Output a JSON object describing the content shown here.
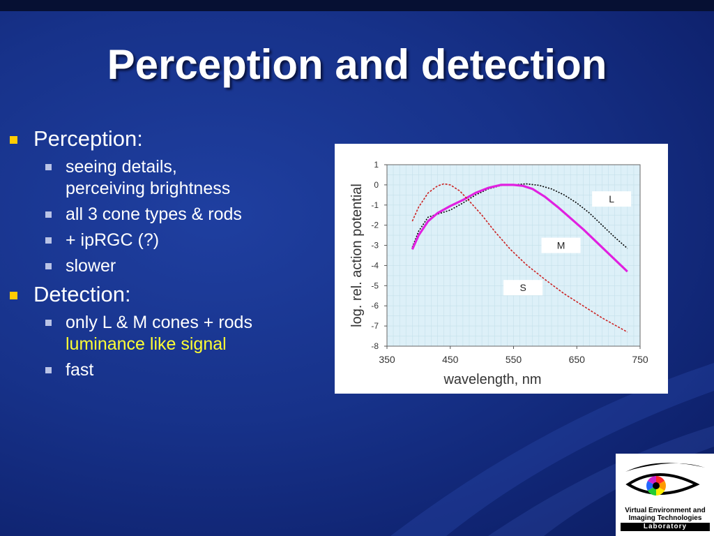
{
  "slide": {
    "title": "Perception and detection"
  },
  "bullets": {
    "perception": {
      "heading": "Perception:",
      "items": [
        "seeing details, perceiving brightness",
        "all 3 cone types & rods",
        "+ ipRGC (?)",
        "slower"
      ]
    },
    "detection": {
      "heading": "Detection:",
      "items": [
        {
          "text": "only L & M cones + rods",
          "highlight": "luminance like signal"
        },
        {
          "text": "fast"
        }
      ]
    }
  },
  "colors": {
    "bullet_l1": "#ffcc00",
    "bullet_l2": "#b9c3e6",
    "highlight_text": "#ffff33",
    "curve_L": "#000000",
    "curve_M": "#e020e0",
    "curve_S": "#cc2222",
    "plot_background": "#ddf0f8"
  },
  "chart_data": {
    "type": "line",
    "xlabel": "wavelength, nm",
    "ylabel": "log. rel. action potential",
    "xlim": [
      350,
      750
    ],
    "ylim": [
      -8,
      1
    ],
    "x_ticks": [
      350,
      450,
      550,
      650,
      750
    ],
    "y_ticks": [
      1,
      0,
      -1,
      -2,
      -3,
      -4,
      -5,
      -6,
      -7,
      -8
    ],
    "grid": true,
    "series": [
      {
        "name": "L",
        "style": "dotted",
        "x": [
          390,
          400,
          415,
          430,
          450,
          470,
          490,
          510,
          530,
          550,
          570,
          590,
          610,
          630,
          650,
          670,
          690,
          710,
          730
        ],
        "y": [
          -3.1,
          -2.3,
          -1.6,
          -1.45,
          -1.25,
          -0.9,
          -0.5,
          -0.2,
          -0.03,
          0.0,
          0.05,
          -0.02,
          -0.2,
          -0.5,
          -0.9,
          -1.4,
          -2.0,
          -2.6,
          -3.15
        ]
      },
      {
        "name": "M",
        "style": "solid",
        "x": [
          390,
          400,
          415,
          430,
          450,
          470,
          490,
          510,
          530,
          550,
          565,
          580,
          600,
          620,
          640,
          660,
          680,
          700,
          715,
          730
        ],
        "y": [
          -3.2,
          -2.5,
          -1.8,
          -1.4,
          -1.05,
          -0.75,
          -0.4,
          -0.15,
          0.0,
          0.0,
          -0.05,
          -0.2,
          -0.6,
          -1.1,
          -1.65,
          -2.2,
          -2.8,
          -3.4,
          -3.85,
          -4.3
        ]
      },
      {
        "name": "S",
        "style": "dashed",
        "x": [
          390,
          400,
          415,
          430,
          440,
          450,
          465,
          480,
          500,
          520,
          545,
          570,
          600,
          630,
          660,
          690,
          710,
          730
        ],
        "y": [
          -1.8,
          -1.1,
          -0.4,
          -0.05,
          0.05,
          0.0,
          -0.3,
          -0.8,
          -1.5,
          -2.3,
          -3.2,
          -3.95,
          -4.7,
          -5.4,
          -6.0,
          -6.6,
          -6.95,
          -7.3
        ]
      }
    ],
    "annotations": [
      {
        "text": "L",
        "x": 705,
        "y": -0.7
      },
      {
        "text": "M",
        "x": 625,
        "y": -3.0
      },
      {
        "text": "S",
        "x": 565,
        "y": -5.1
      }
    ]
  },
  "logo": {
    "line1": "Virtual Environment and",
    "line2": "Imaging Technologies",
    "line3": "Laboratory"
  }
}
